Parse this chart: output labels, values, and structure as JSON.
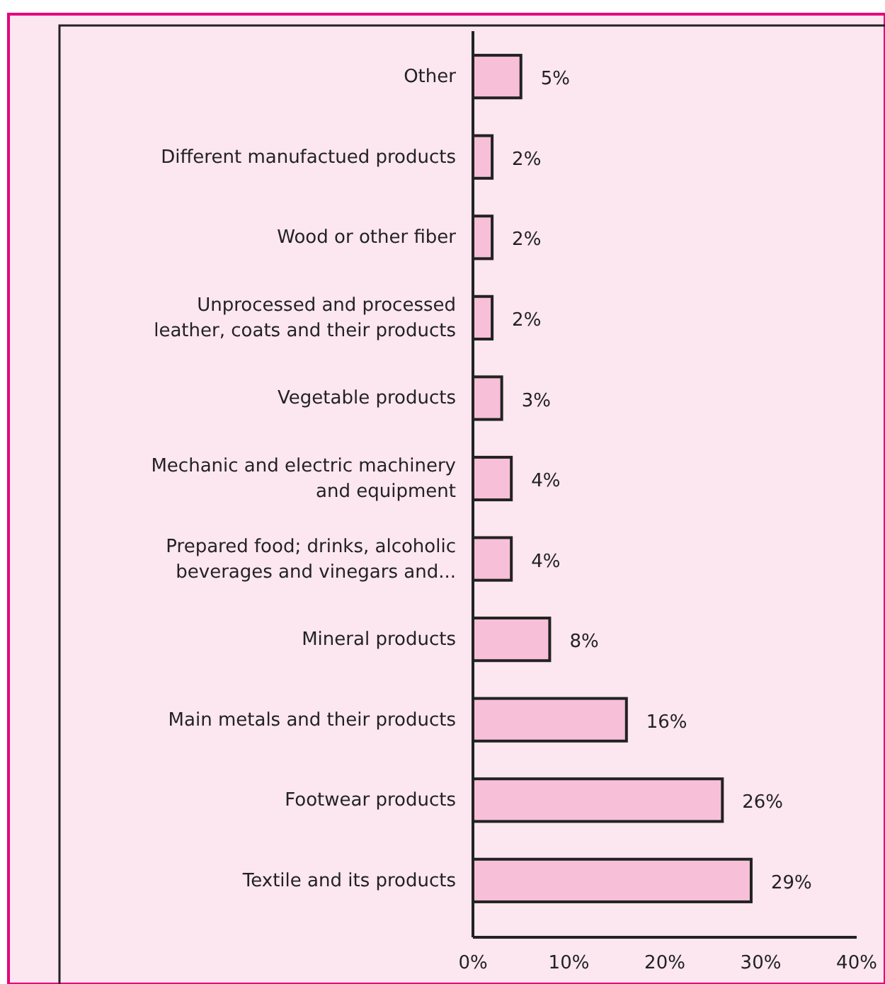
{
  "chart_data": {
    "type": "bar",
    "orientation": "horizontal",
    "categories": [
      "Other",
      "Different manufactued products",
      "Wood or other fiber",
      "Unprocessed and processed\nleather, coats and their products",
      "Vegetable products",
      "Mechanic and electric machinery\nand equipment",
      "Prepared food; drinks, alcoholic\nbeverages and vinegars and...",
      "Mineral products",
      "Main metals and their products",
      "Footwear products",
      "Textile and its products"
    ],
    "values": [
      5,
      2,
      2,
      2,
      3,
      4,
      4,
      8,
      16,
      26,
      29
    ],
    "value_labels": [
      "5%",
      "2%",
      "2%",
      "2%",
      "3%",
      "4%",
      "4%",
      "8%",
      "16%",
      "26%",
      "29%"
    ],
    "color": "#f7c0d8",
    "xlim": [
      0,
      40
    ],
    "xticks": [
      {
        "value": 0,
        "label": "0%"
      },
      {
        "value": 10,
        "label": "10%"
      },
      {
        "value": 20,
        "label": "20%"
      },
      {
        "value": 30,
        "label": "30%"
      },
      {
        "value": 40,
        "label": "40%"
      }
    ],
    "grid": false
  }
}
